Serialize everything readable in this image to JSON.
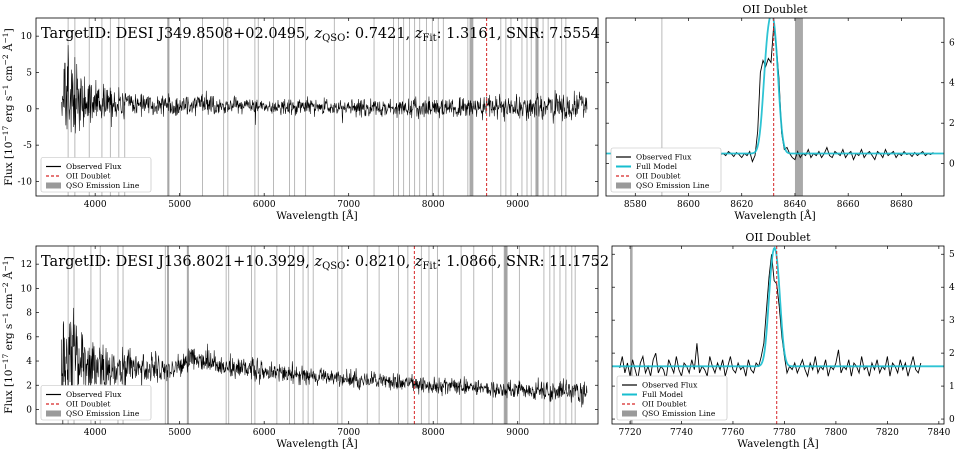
{
  "chart_data": [
    {
      "type": "line",
      "panel": "row1-full",
      "annotation": "TargetID: DESI J349.8508+02.0495, z_QSO: 0.7421, z_Fit: 1.3161, SNR: 7.5554",
      "annotation_parts": {
        "a": "TargetID: DESI J349.8508+02.0495, ",
        "z1": "z",
        "s1": "QSO",
        "b": ": 0.7421, ",
        "z2": "z",
        "s2": "Fit",
        "c": ": 1.3161, SNR: 7.5554"
      },
      "xlabel": "Wavelength [Å]",
      "ylabel_parts": {
        "a": "Flux [10",
        "e1": "−17",
        "b": " erg s",
        "e2": "−1",
        "c": " cm",
        "e3": "−2",
        "d": " Å",
        "e4": "−1",
        "e": "]"
      },
      "xlim": [
        3300,
        9950
      ],
      "ylim": [
        -12,
        12.5
      ],
      "xticks": [
        4000,
        5000,
        6000,
        7000,
        8000,
        9000,
        10000
      ],
      "yticks": [
        -10,
        -5,
        0,
        5,
        10
      ],
      "x_range": [
        3600,
        9820
      ],
      "baseline": [
        [
          3600,
          1.5
        ],
        [
          3800,
          0.9
        ],
        [
          4500,
          0.6
        ],
        [
          6000,
          0.3
        ],
        [
          8000,
          0.1
        ],
        [
          9820,
          0.3
        ]
      ],
      "noise": [
        [
          3600,
          3.5
        ],
        [
          3900,
          1.5
        ],
        [
          4500,
          0.8
        ],
        [
          6000,
          0.5
        ],
        [
          8500,
          0.7
        ],
        [
          9820,
          1.0
        ]
      ],
      "oii_line": 8632,
      "emission_bands": [
        [
          4855,
          4875
        ],
        [
          8430,
          8475
        ],
        [
          9210,
          9245
        ]
      ],
      "sky_lines": [
        3680,
        3760,
        3930,
        4080,
        4180,
        4280,
        4350,
        4860,
        5010,
        5270,
        5520,
        5570,
        5890,
        5930,
        6110,
        6300,
        6360,
        6490,
        6830,
        7300,
        7530,
        7590,
        7650,
        7720,
        7780,
        7840,
        7920,
        7990,
        8060,
        8120,
        8410,
        8800,
        8860,
        8920,
        9050,
        9110,
        9160,
        9240,
        9300,
        9360,
        9440,
        9520,
        9570
      ],
      "legend": [
        "Observed Flux",
        "OII Doublet",
        "QSO Emission Line"
      ],
      "legend_loc": "lower left",
      "colors": {
        "flux": "#000000",
        "oii": "#d62728",
        "band": "#9a9a9a",
        "sky": "#999999"
      }
    },
    {
      "type": "line",
      "panel": "row1-zoom",
      "title": "OII Doublet",
      "xlabel": "Wavelength [Å]",
      "xlim": [
        8569,
        8696
      ],
      "ylim": [
        -1.6,
        7.2
      ],
      "xticks": [
        8580,
        8600,
        8620,
        8640,
        8660,
        8680
      ],
      "yticks": [
        0,
        2,
        4,
        6
      ],
      "oii_line": 8632,
      "emission_band": [
        8640,
        8643
      ],
      "sky_lines": [
        8590
      ],
      "observed": {
        "x0": 8573,
        "step": 1,
        "y": [
          0.45,
          0.5,
          0.3,
          0.4,
          0.6,
          0.45,
          0.35,
          0.5,
          0.7,
          0.4,
          0.3,
          0.55,
          0.45,
          0.6,
          0.35,
          0.5,
          0.4,
          0.45,
          0.6,
          0.3,
          0.5,
          0.55,
          0.4,
          0.45,
          0.35,
          0.5,
          0.6,
          0.4,
          0.3,
          0.5,
          0.45,
          0.55,
          0.4,
          0.6,
          0.5,
          0.35,
          0.45,
          0.3,
          0.55,
          0.45,
          0.5,
          0.4,
          0.6,
          0.5,
          0.35,
          0.55,
          0.45,
          0.3,
          0.5,
          0.4,
          0.6,
          0.1,
          0.4,
          1.6,
          4.5,
          5.1,
          4.8,
          5.2,
          5.0,
          6.8,
          5.8,
          4.2,
          1.5,
          0.7,
          0.8,
          0.5,
          0.3,
          0.2,
          0.6,
          0.3,
          0.5,
          0.4,
          0.7,
          0.3,
          0.5,
          0.4,
          0.6,
          0.3,
          0.5,
          0.8,
          0.4,
          0.3,
          0.6,
          0.5,
          0.4,
          0.7,
          0.3,
          0.5,
          0.6,
          0.2,
          0.5,
          0.4,
          0.7,
          0.3,
          0.5,
          0.6,
          0.4,
          0.2,
          0.6,
          0.5,
          0.3,
          0.7,
          0.4,
          0.5,
          0.6,
          0.3,
          0.5,
          0.4,
          0.6,
          0.45,
          0.5,
          0.35,
          0.55,
          0.4,
          0.5,
          0.6,
          0.4,
          0.5,
          0.45,
          0.55
        ]
      },
      "model": {
        "base": 0.5,
        "components": [
          {
            "center": 8629.6,
            "amp": 4.6,
            "sigma": 1.6
          },
          {
            "center": 8632.3,
            "amp": 5.2,
            "sigma": 1.6
          }
        ]
      },
      "legend": [
        "Observed Flux",
        "Full Model",
        "OII Doublet",
        "QSO Emission Line"
      ],
      "legend_loc": "lower left",
      "colors": {
        "flux": "#000000",
        "model": "#17becf",
        "oii": "#d62728",
        "band": "#9a9a9a"
      }
    },
    {
      "type": "line",
      "panel": "row2-full",
      "annotation": "TargetID: DESI J136.8021+10.3929, z_QSO: 0.8210, z_Fit: 1.0866, SNR: 11.1752",
      "annotation_parts": {
        "a": "TargetID: DESI J136.8021+10.3929, ",
        "z1": "z",
        "s1": "QSO",
        "b": ": 0.8210, ",
        "z2": "z",
        "s2": "Fit",
        "c": ": 1.0866, SNR: 11.1752"
      },
      "xlabel": "Wavelength [Å]",
      "ylabel_parts": {
        "a": "Flux [10",
        "e1": "−17",
        "b": " erg s",
        "e2": "−1",
        "c": " cm",
        "e3": "−2",
        "d": " Å",
        "e4": "−1",
        "e": "]"
      },
      "xlim": [
        3300,
        9950
      ],
      "ylim": [
        -1.2,
        13.5
      ],
      "xticks": [
        4000,
        5000,
        6000,
        7000,
        8000,
        9000
      ],
      "yticks": [
        0,
        2,
        4,
        6,
        8,
        10,
        12
      ],
      "x_range": [
        3600,
        9820
      ],
      "baseline": [
        [
          3600,
          4.3
        ],
        [
          4000,
          3.6
        ],
        [
          4600,
          3.3
        ],
        [
          5000,
          3.5
        ],
        [
          5150,
          4.2
        ],
        [
          5600,
          3.5
        ],
        [
          6500,
          2.8
        ],
        [
          7500,
          2.2
        ],
        [
          8500,
          1.8
        ],
        [
          9820,
          1.3
        ]
      ],
      "noise": [
        [
          3600,
          2.2
        ],
        [
          4000,
          1.0
        ],
        [
          5000,
          0.5
        ],
        [
          7000,
          0.35
        ],
        [
          9000,
          0.35
        ],
        [
          9820,
          0.5
        ]
      ],
      "oii_line": 7777,
      "emission_bands": [
        [
          4850,
          4870
        ],
        [
          5085,
          5105
        ],
        [
          8835,
          8880
        ]
      ],
      "sky_lines": [
        3680,
        3750,
        3950,
        4060,
        4270,
        4330,
        4830,
        5550,
        5580,
        5850,
        5890,
        6150,
        6300,
        6360,
        6460,
        6520,
        6580,
        6870,
        6920,
        7220,
        7360,
        7590,
        7700,
        7860,
        7950,
        8050,
        8330,
        8480,
        8700,
        8860,
        9020,
        9310,
        9380,
        9430,
        9500,
        9570,
        9640,
        9680
      ],
      "legend": [
        "Observed Flux",
        "OII Doublet",
        "QSO Emission Line"
      ],
      "legend_loc": "lower left",
      "colors": {
        "flux": "#000000",
        "oii": "#d62728",
        "band": "#9a9a9a",
        "sky": "#999999"
      }
    },
    {
      "type": "line",
      "panel": "row2-zoom",
      "title": "OII Doublet",
      "xlabel": "Wavelength [Å]",
      "xlim": [
        7713,
        7842
      ],
      "ylim": [
        -0.15,
        5.25
      ],
      "xticks": [
        7720,
        7740,
        7760,
        7780,
        7800,
        7820,
        7840
      ],
      "yticks": [
        0,
        1,
        2,
        3,
        4,
        5
      ],
      "oii_line": 7777,
      "emission_band": [
        7720,
        7721
      ],
      "observed": {
        "x0": 7716,
        "step": 1,
        "y": [
          1.55,
          1.9,
          1.4,
          1.7,
          1.3,
          1.8,
          1.5,
          1.2,
          1.7,
          1.9,
          1.4,
          1.6,
          1.3,
          1.8,
          2.0,
          1.4,
          1.6,
          1.5,
          1.2,
          1.8,
          1.6,
          1.4,
          1.9,
          1.5,
          1.3,
          1.7,
          1.6,
          1.4,
          1.8,
          1.5,
          2.3,
          1.4,
          1.6,
          1.5,
          1.3,
          1.9,
          1.6,
          1.4,
          1.7,
          1.5,
          1.8,
          1.3,
          1.6,
          1.9,
          1.5,
          1.4,
          1.7,
          1.5,
          1.6,
          1.3,
          1.8,
          1.5,
          1.4,
          1.7,
          1.6,
          1.9,
          2.3,
          3.3,
          4.3,
          5.0,
          4.2,
          4.1,
          3.4,
          2.5,
          1.9,
          1.4,
          1.6,
          1.5,
          1.7,
          1.4,
          1.6,
          1.8,
          1.5,
          1.3,
          1.7,
          1.5,
          1.9,
          1.4,
          1.6,
          1.5,
          1.8,
          1.3,
          1.6,
          1.5,
          1.7,
          2.1,
          1.4,
          1.6,
          1.5,
          1.8,
          1.3,
          1.7,
          1.6,
          1.4,
          1.9,
          1.5,
          1.6,
          1.3,
          1.7,
          1.5,
          1.8,
          1.4,
          1.6,
          1.5,
          1.9,
          1.3,
          1.7,
          1.6,
          1.4,
          1.8,
          1.5,
          1.7,
          1.3,
          1.6,
          1.9,
          1.5,
          1.4,
          1.7
        ]
      },
      "model": {
        "base": 1.6,
        "components": [
          {
            "center": 7775.0,
            "amp": 2.3,
            "sigma": 1.5
          },
          {
            "center": 7777.2,
            "amp": 2.4,
            "sigma": 1.5
          }
        ]
      },
      "legend": [
        "Observed Flux",
        "Full Model",
        "OII Doublet",
        "QSO Emission Line"
      ],
      "legend_loc": "lower left",
      "colors": {
        "flux": "#000000",
        "model": "#17becf",
        "oii": "#d62728",
        "band": "#9a9a9a"
      }
    }
  ]
}
